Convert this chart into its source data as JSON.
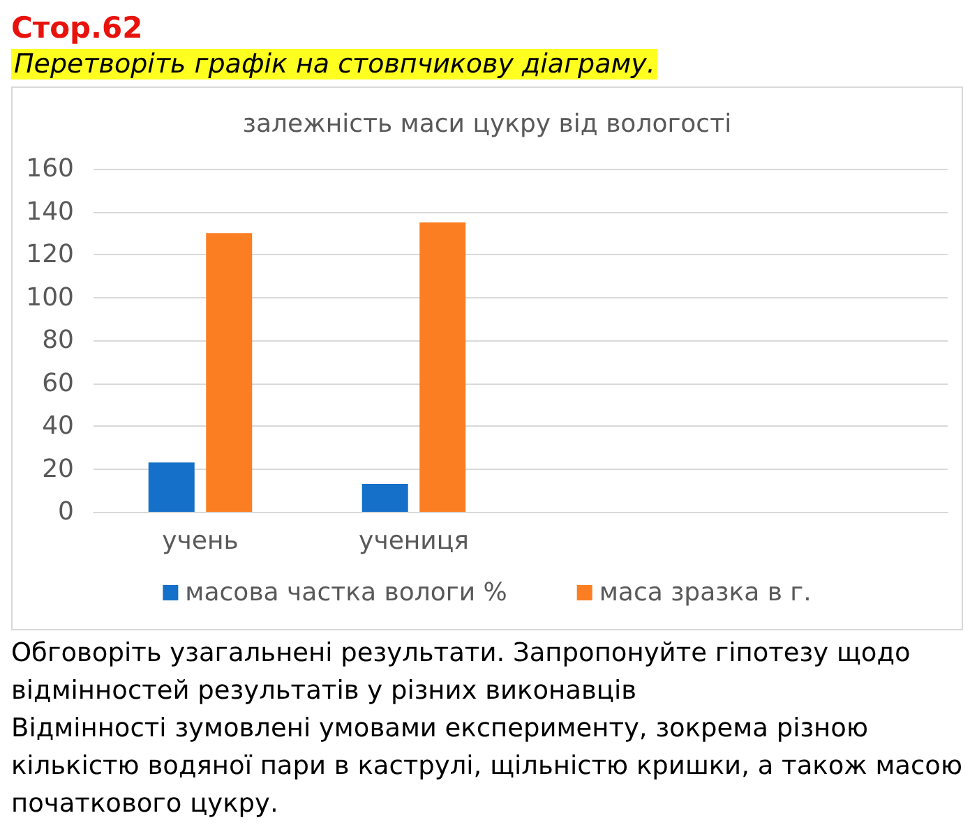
{
  "chart_data": {
    "type": "bar",
    "title": "залежність маси цукру від вологості",
    "categories": [
      "учень",
      "учениця",
      null,
      null
    ],
    "series": [
      {
        "name": "масова частка вологи %",
        "color": "#1570c9",
        "values": [
          23,
          13,
          null,
          null
        ]
      },
      {
        "name": "маса зразка в г.",
        "color": "#fc7e23",
        "values": [
          130,
          135,
          null,
          null
        ]
      }
    ],
    "ylim": [
      0,
      160
    ],
    "yticks": [
      0,
      20,
      40,
      60,
      80,
      100,
      120,
      140,
      160
    ],
    "grid": "y",
    "legend": "bottom",
    "annotations": [
      "Стор.62",
      "Перетворіть графік на стовпчикову діаграму.",
      "Обговоріть узагальнені результати. Запропонуйте гіпотезу щодо відмінностей результатів у різних виконавців",
      "Відмінності зумовлені умовами експерименту, зокрема різною кількістю водяної пари в каструлі, щільністю кришки, а також масою початкового цукру."
    ]
  }
}
